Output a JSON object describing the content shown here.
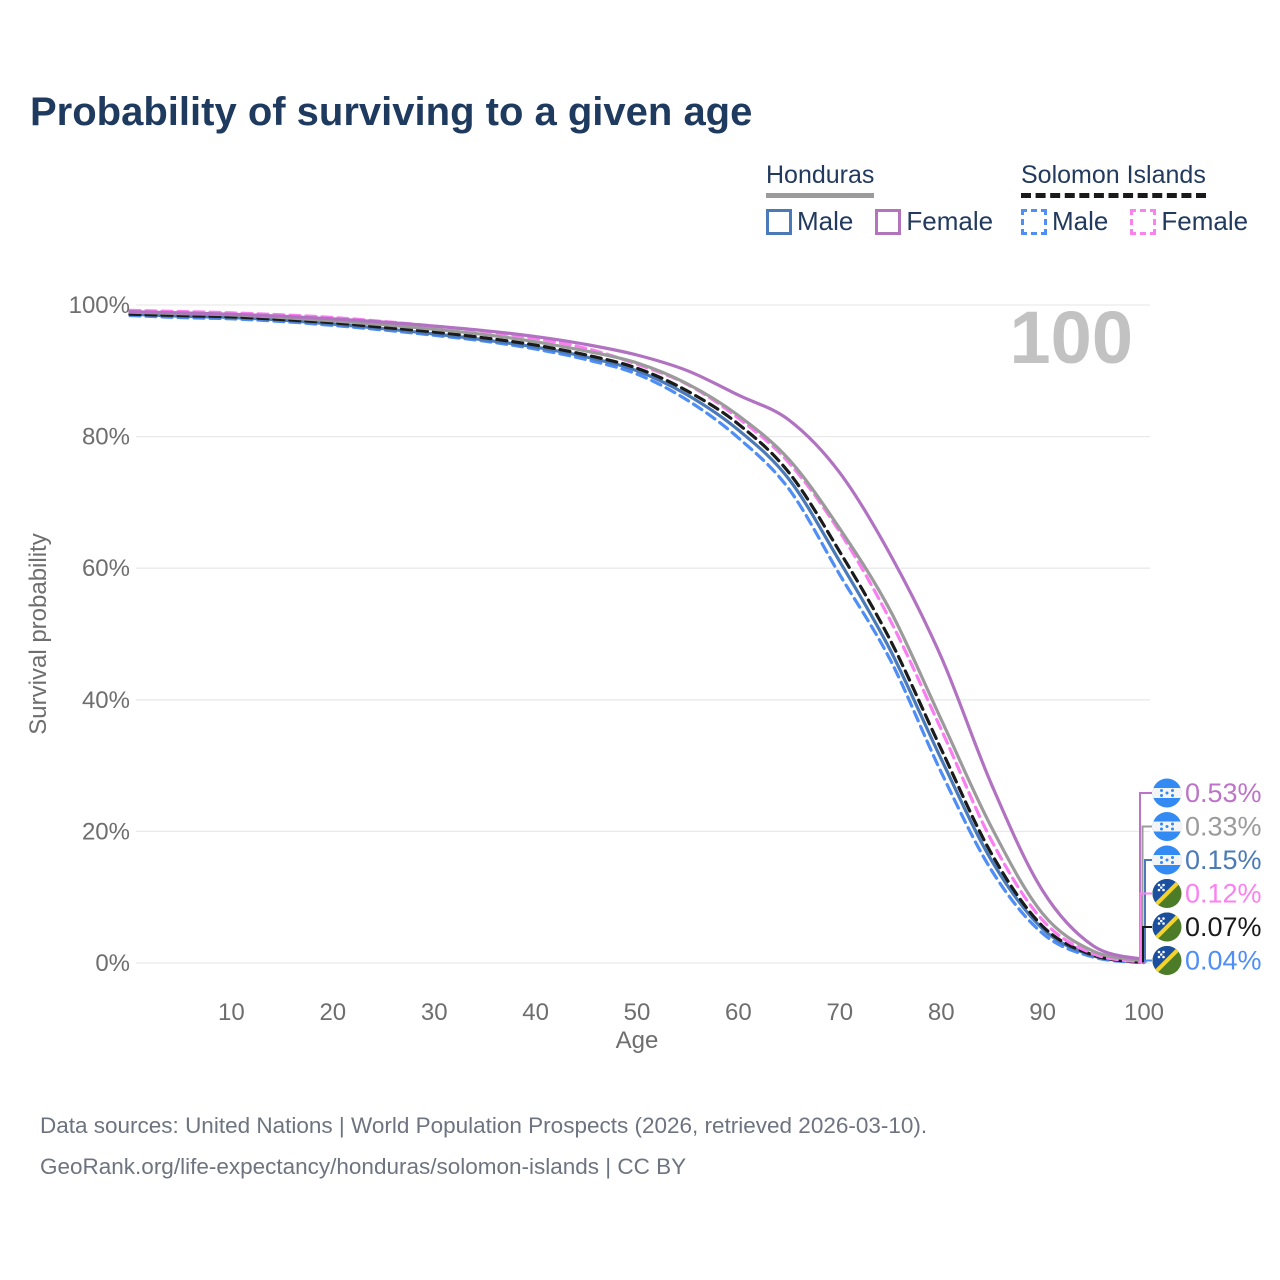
{
  "title": "Probability of surviving to a given age",
  "watermark": "100",
  "legend": {
    "groups": [
      {
        "label": "Honduras",
        "line_style": "solid",
        "underline_color": "#9b9b9b",
        "items": [
          {
            "label": "Male",
            "color": "#4b7ab8",
            "dashed": false
          },
          {
            "label": "Female",
            "color": "#b474bb",
            "dashed": false
          }
        ]
      },
      {
        "label": "Solomon Islands",
        "line_style": "dashed",
        "underline_color": "#1a1a1a",
        "items": [
          {
            "label": "Male",
            "color": "#4f8df7",
            "dashed": true
          },
          {
            "label": "Female",
            "color": "#fb80f0",
            "dashed": true
          }
        ]
      }
    ]
  },
  "chart_data": {
    "type": "line",
    "title": "Probability of surviving to a given age",
    "xlabel": "Age",
    "ylabel": "Survival probability",
    "xlim": [
      0,
      100
    ],
    "ylim": [
      0,
      100
    ],
    "x_ticks": [
      10,
      20,
      30,
      40,
      50,
      60,
      70,
      80,
      90,
      100
    ],
    "y_ticks": [
      0,
      20,
      40,
      60,
      80,
      100
    ],
    "y_tick_suffix": "%",
    "grid": "horizontal",
    "legend_position": "top-right",
    "ages": [
      0,
      5,
      10,
      15,
      20,
      25,
      30,
      35,
      40,
      45,
      50,
      55,
      60,
      65,
      70,
      75,
      80,
      85,
      90,
      95,
      100
    ],
    "series": [
      {
        "name": "Honduras Female",
        "country": "Honduras",
        "sex": "female",
        "color": "#b172c1",
        "dash": "solid",
        "end_value_label": "0.53%",
        "values": [
          99.0,
          98.8,
          98.6,
          98.3,
          97.9,
          97.4,
          96.8,
          96.1,
          95.2,
          94.0,
          92.4,
          90.0,
          86.3,
          82.5,
          74.5,
          62.0,
          46.5,
          27.0,
          11.0,
          2.6,
          0.53
        ]
      },
      {
        "name": "Honduras Both sexes",
        "country": "Honduras",
        "sex": "both",
        "color": "#9b9b9b",
        "dash": "solid",
        "end_value_label": "0.33%",
        "values": [
          98.9,
          98.7,
          98.5,
          98.1,
          97.6,
          97.0,
          96.3,
          95.5,
          94.4,
          93.0,
          91.2,
          88.0,
          83.2,
          76.5,
          66.0,
          53.5,
          37.0,
          20.5,
          7.5,
          1.8,
          0.33
        ]
      },
      {
        "name": "Honduras Male",
        "country": "Honduras",
        "sex": "male",
        "color": "#4b7ab8",
        "dash": "solid",
        "end_value_label": "0.15%",
        "values": [
          98.6,
          98.3,
          98.1,
          97.7,
          97.1,
          96.4,
          95.6,
          94.7,
          93.6,
          92.1,
          90.0,
          86.3,
          81.0,
          73.5,
          61.0,
          47.5,
          31.0,
          15.5,
          5.2,
          1.1,
          0.15
        ]
      },
      {
        "name": "Solomon Islands Female",
        "country": "Solomon Islands",
        "sex": "female",
        "color": "#fa7ef2",
        "dash": "dashed",
        "end_value_label": "0.12%",
        "values": [
          99.2,
          99.0,
          98.8,
          98.5,
          98.1,
          97.5,
          96.8,
          96.0,
          94.9,
          93.4,
          91.0,
          87.9,
          82.8,
          76.0,
          65.5,
          52.0,
          35.5,
          18.5,
          6.5,
          1.4,
          0.12
        ]
      },
      {
        "name": "Solomon Islands Both sexes",
        "country": "Solomon Islands",
        "sex": "both",
        "color": "#1b1b1b",
        "dash": "dashed",
        "end_value_label": "0.07%",
        "values": [
          98.6,
          98.4,
          98.2,
          97.8,
          97.3,
          96.6,
          95.9,
          95.0,
          93.9,
          92.4,
          90.4,
          86.9,
          81.9,
          74.5,
          62.5,
          49.0,
          32.5,
          16.5,
          5.6,
          1.2,
          0.07
        ]
      },
      {
        "name": "Solomon Islands Male",
        "country": "Solomon Islands",
        "sex": "male",
        "color": "#4f8df7",
        "dash": "dashed",
        "end_value_label": "0.04%",
        "values": [
          98.4,
          98.1,
          97.9,
          97.5,
          96.9,
          96.2,
          95.4,
          94.5,
          93.3,
          91.7,
          89.5,
          85.5,
          79.8,
          72.0,
          59.0,
          46.0,
          29.0,
          14.0,
          4.5,
          0.9,
          0.04
        ]
      }
    ]
  },
  "end_labels": [
    {
      "text": "0.53%",
      "color": "#bd74c8",
      "flag": "honduras",
      "series": "Honduras Female"
    },
    {
      "text": "0.33%",
      "color": "#9b9b9b",
      "flag": "honduras",
      "series": "Honduras Both sexes"
    },
    {
      "text": "0.15%",
      "color": "#4b7ab8",
      "flag": "honduras",
      "series": "Honduras Male"
    },
    {
      "text": "0.12%",
      "color": "#fb80f0",
      "flag": "solomon",
      "series": "Solomon Islands Female"
    },
    {
      "text": "0.07%",
      "color": "#1a1a1a",
      "flag": "solomon",
      "series": "Solomon Islands Both sexes"
    },
    {
      "text": "0.04%",
      "color": "#4f8df7",
      "flag": "solomon",
      "series": "Solomon Islands Male"
    }
  ],
  "footer": {
    "line1": "Data sources: United Nations | World Population Prospects (2026, retrieved 2026-03-10).",
    "line2": "GeoRank.org/life-expectancy/honduras/solomon-islands | CC BY"
  }
}
